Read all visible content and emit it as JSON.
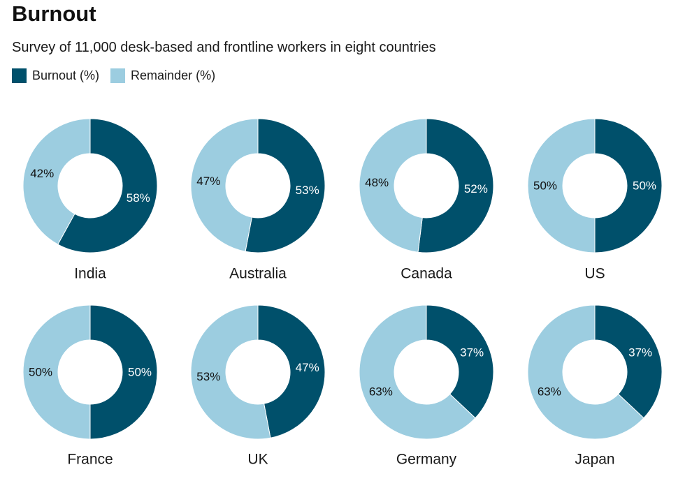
{
  "title": "Burnout",
  "subtitle": "Survey of 11,000 desk-based and frontline workers in eight countries",
  "legend": [
    {
      "label": "Burnout (%)",
      "color": "#00506b"
    },
    {
      "label": "Remainder (%)",
      "color": "#9ccde0"
    }
  ],
  "chart_data": {
    "type": "pie",
    "variant": "donut",
    "series_names": [
      "Burnout (%)",
      "Remainder (%)"
    ],
    "colors": {
      "burnout": "#00506b",
      "remainder": "#9ccde0"
    },
    "countries": [
      {
        "name": "India",
        "burnout": 58,
        "remainder": 42
      },
      {
        "name": "Australia",
        "burnout": 53,
        "remainder": 47
      },
      {
        "name": "Canada",
        "burnout": 52,
        "remainder": 48
      },
      {
        "name": "US",
        "burnout": 50,
        "remainder": 50
      },
      {
        "name": "France",
        "burnout": 50,
        "remainder": 50
      },
      {
        "name": "UK",
        "burnout": 47,
        "remainder": 53
      },
      {
        "name": "Germany",
        "burnout": 37,
        "remainder": 63
      },
      {
        "name": "Japan",
        "burnout": 37,
        "remainder": 63
      }
    ]
  }
}
